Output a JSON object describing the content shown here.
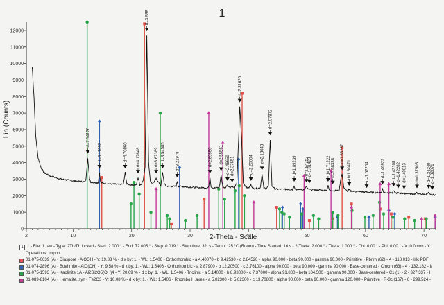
{
  "chart_data": {
    "type": "line",
    "title": "1",
    "xlabel": "2-Theta - Scale",
    "ylabel": "Lin (Counts)",
    "xlim": [
      2,
      72
    ],
    "ylim": [
      0,
      12500
    ],
    "xticks": [
      2,
      10,
      20,
      30,
      40,
      50,
      60,
      70
    ],
    "yticks": [
      0,
      1000,
      2000,
      3000,
      4000,
      5000,
      6000,
      7000,
      8000,
      9000,
      10000,
      11000,
      12000
    ],
    "grid": false,
    "pattern": {
      "name": "1",
      "points": [
        [
          3.0,
          9800
        ],
        [
          3.3,
          8000
        ],
        [
          3.6,
          5600
        ],
        [
          4.0,
          4300
        ],
        [
          4.5,
          3700
        ],
        [
          5.0,
          3400
        ],
        [
          6.0,
          3200
        ],
        [
          7.0,
          3100
        ],
        [
          8.0,
          3000
        ],
        [
          9.0,
          2950
        ],
        [
          10.0,
          2900
        ],
        [
          11.0,
          2870
        ],
        [
          12.0,
          2840
        ],
        [
          12.2,
          3000
        ],
        [
          12.4,
          3900
        ],
        [
          12.5,
          4300
        ],
        [
          12.6,
          3900
        ],
        [
          12.8,
          3000
        ],
        [
          13.0,
          2820
        ],
        [
          14.0,
          2780
        ],
        [
          14.3,
          2800
        ],
        [
          14.5,
          3400
        ],
        [
          14.7,
          2800
        ],
        [
          15.0,
          2760
        ],
        [
          16.0,
          2730
        ],
        [
          17.0,
          2700
        ],
        [
          18.0,
          2680
        ],
        [
          18.6,
          2700
        ],
        [
          18.9,
          3400
        ],
        [
          19.2,
          2700
        ],
        [
          20.0,
          2650
        ],
        [
          20.8,
          2660
        ],
        [
          21.1,
          3100
        ],
        [
          21.4,
          2660
        ],
        [
          21.7,
          2700
        ],
        [
          22.0,
          3000
        ],
        [
          22.3,
          3700
        ],
        [
          22.6,
          11700
        ],
        [
          22.9,
          4000
        ],
        [
          23.2,
          2900
        ],
        [
          23.6,
          2700
        ],
        [
          24.0,
          2900
        ],
        [
          24.2,
          3100
        ],
        [
          24.4,
          2900
        ],
        [
          25.0,
          2620
        ],
        [
          25.3,
          3400
        ],
        [
          25.6,
          2700
        ],
        [
          26.0,
          2580
        ],
        [
          27.0,
          2560
        ],
        [
          27.6,
          2570
        ],
        [
          27.8,
          2850
        ],
        [
          28.0,
          2570
        ],
        [
          29.0,
          2540
        ],
        [
          30.0,
          2520
        ],
        [
          31.0,
          2500
        ],
        [
          32.0,
          2480
        ],
        [
          33.0,
          2470
        ],
        [
          33.2,
          2550
        ],
        [
          33.4,
          3100
        ],
        [
          33.6,
          2550
        ],
        [
          34.0,
          2460
        ],
        [
          35.0,
          2500
        ],
        [
          35.3,
          3250
        ],
        [
          35.6,
          2500
        ],
        [
          36.0,
          2480
        ],
        [
          36.4,
          2650
        ],
        [
          36.8,
          2500
        ],
        [
          37.2,
          2560
        ],
        [
          37.6,
          2450
        ],
        [
          38.0,
          2800
        ],
        [
          38.3,
          5400
        ],
        [
          38.5,
          7400
        ],
        [
          38.8,
          5500
        ],
        [
          39.1,
          2800
        ],
        [
          39.6,
          2500
        ],
        [
          40.0,
          2460
        ],
        [
          40.4,
          2650
        ],
        [
          40.8,
          2440
        ],
        [
          41.5,
          2430
        ],
        [
          42.0,
          2480
        ],
        [
          42.3,
          3300
        ],
        [
          42.6,
          2480
        ],
        [
          43.0,
          2420
        ],
        [
          43.4,
          2600
        ],
        [
          43.7,
          5400
        ],
        [
          44.0,
          2600
        ],
        [
          44.5,
          2410
        ],
        [
          45.0,
          2400
        ],
        [
          46.0,
          2390
        ],
        [
          47.0,
          2380
        ],
        [
          47.5,
          2370
        ],
        [
          47.8,
          2600
        ],
        [
          48.0,
          2380
        ],
        [
          49.0,
          2370
        ],
        [
          49.6,
          2380
        ],
        [
          49.9,
          2550
        ],
        [
          50.2,
          2380
        ],
        [
          51.0,
          2360
        ],
        [
          52.0,
          2340
        ],
        [
          53.0,
          2320
        ],
        [
          53.4,
          2350
        ],
        [
          53.6,
          2600
        ],
        [
          53.8,
          2350
        ],
        [
          54.5,
          2300
        ],
        [
          55.0,
          2300
        ],
        [
          55.5,
          2330
        ],
        [
          55.8,
          3100
        ],
        [
          56.0,
          3300
        ],
        [
          56.3,
          2500
        ],
        [
          56.8,
          2280
        ],
        [
          57.2,
          2350
        ],
        [
          57.5,
          2280
        ],
        [
          58.0,
          2260
        ],
        [
          59.0,
          2240
        ],
        [
          59.6,
          2230
        ],
        [
          60.0,
          2220
        ],
        [
          61.0,
          2200
        ],
        [
          62.0,
          2190
        ],
        [
          62.7,
          2200
        ],
        [
          62.9,
          2430
        ],
        [
          63.1,
          2200
        ],
        [
          64.0,
          2170
        ],
        [
          64.6,
          2170
        ],
        [
          64.8,
          2300
        ],
        [
          65.0,
          2170
        ],
        [
          66.0,
          2150
        ],
        [
          67.0,
          2130
        ],
        [
          68.0,
          2110
        ],
        [
          68.5,
          2100
        ],
        [
          68.8,
          2200
        ],
        [
          69.0,
          2100
        ],
        [
          70.0,
          2080
        ],
        [
          70.5,
          2080
        ],
        [
          70.8,
          2180
        ],
        [
          71.0,
          2070
        ],
        [
          71.5,
          2060
        ],
        [
          72.0,
          2050
        ]
      ]
    },
    "peak_labels": [
      {
        "x": 12.5,
        "y": 4300,
        "label": "d=7.14126"
      },
      {
        "x": 14.5,
        "y": 3400,
        "label": "d=6.11092"
      },
      {
        "x": 18.9,
        "y": 3400,
        "label": "d=4.70860"
      },
      {
        "x": 21.1,
        "y": 3100,
        "label": "d=4.17648"
      },
      {
        "x": 22.6,
        "y": 11700,
        "label": "d=3.988"
      },
      {
        "x": 24.2,
        "y": 3100,
        "label": "d=3.67389"
      },
      {
        "x": 25.3,
        "y": 3400,
        "label": "d=3.54585"
      },
      {
        "x": 27.8,
        "y": 2850,
        "label": "d=3.21978"
      },
      {
        "x": 33.4,
        "y": 3100,
        "label": "d=2.69550"
      },
      {
        "x": 35.3,
        "y": 3250,
        "label": "d=2.55561"
      },
      {
        "x": 36.4,
        "y": 2650,
        "label": "d=2.46659"
      },
      {
        "x": 37.2,
        "y": 2560,
        "label": "d=2.37651"
      },
      {
        "x": 38.5,
        "y": 7400,
        "label": "d=2.31626"
      },
      {
        "x": 40.4,
        "y": 2650,
        "label": "d=2.20004"
      },
      {
        "x": 42.3,
        "y": 3300,
        "label": "d=2.13043"
      },
      {
        "x": 43.7,
        "y": 5400,
        "label": "d=2.07872"
      },
      {
        "x": 47.8,
        "y": 2600,
        "label": "d=1.89239"
      },
      {
        "x": 49.9,
        "y": 2550,
        "label": "d=1.84352"
      },
      {
        "x": 50.4,
        "y": 2500,
        "label": "d=1.81428"
      },
      {
        "x": 53.6,
        "y": 2600,
        "label": "d=1.71222"
      },
      {
        "x": 54.4,
        "y": 2450,
        "label": "d=1.68338"
      },
      {
        "x": 56.0,
        "y": 3300,
        "label": "d=1.63257"
      },
      {
        "x": 57.2,
        "y": 2350,
        "label": "d=1.60471"
      },
      {
        "x": 60.2,
        "y": 2220,
        "label": "d=1.52204"
      },
      {
        "x": 62.9,
        "y": 2430,
        "label": "d=1.46922"
      },
      {
        "x": 64.8,
        "y": 2300,
        "label": "d=1.43108"
      },
      {
        "x": 65.6,
        "y": 2200,
        "label": "d=1.42282"
      },
      {
        "x": 66.6,
        "y": 2150,
        "label": "d=1.40013"
      },
      {
        "x": 68.8,
        "y": 2200,
        "label": "d=1.37505"
      },
      {
        "x": 70.8,
        "y": 2180,
        "label": "d=1.34249"
      },
      {
        "x": 71.4,
        "y": 2100,
        "label": "d=1.32071"
      }
    ],
    "reference_sticks": [
      {
        "phase": "Diaspore",
        "color": "#e0514a",
        "marker": "square",
        "sticks": [
          [
            22.2,
            12400
          ],
          [
            38.9,
            8200
          ],
          [
            56.0,
            4900
          ],
          [
            14.9,
            3100
          ],
          [
            32.4,
            1800
          ],
          [
            44.8,
            1300
          ],
          [
            57.6,
            1500
          ],
          [
            62.5,
            1200
          ],
          [
            64.4,
            900
          ],
          [
            67.4,
            700
          ],
          [
            70.2,
            600
          ],
          [
            26.8,
            300
          ],
          [
            50.4,
            500
          ],
          [
            54.4,
            600
          ]
        ]
      },
      {
        "phase": "Boehmite",
        "color": "#2f62b5",
        "marker": "diamond",
        "sticks": [
          [
            14.5,
            6500
          ],
          [
            28.2,
            3700
          ],
          [
            38.3,
            4200
          ],
          [
            45.8,
            1300
          ],
          [
            48.9,
            1500
          ],
          [
            49.3,
            1200
          ],
          [
            55.2,
            700
          ],
          [
            60.6,
            700
          ],
          [
            64.0,
            1100
          ],
          [
            65.0,
            900
          ],
          [
            71.9,
            700
          ]
        ]
      },
      {
        "phase": "Kaolinite 1A",
        "color": "#29a64a",
        "marker": "circle",
        "sticks": [
          [
            12.4,
            12500
          ],
          [
            24.9,
            7000
          ],
          [
            20.4,
            2800
          ],
          [
            21.3,
            2100
          ],
          [
            19.9,
            1500
          ],
          [
            23.3,
            1000
          ],
          [
            26.1,
            800
          ],
          [
            26.5,
            600
          ],
          [
            34.9,
            2400
          ],
          [
            35.9,
            1800
          ],
          [
            37.7,
            2300
          ],
          [
            38.4,
            2600
          ],
          [
            39.3,
            2000
          ],
          [
            45.3,
            1200
          ],
          [
            45.7,
            1000
          ],
          [
            46.1,
            900
          ],
          [
            47.0,
            700
          ],
          [
            49.1,
            900
          ],
          [
            51.1,
            800
          ],
          [
            52.0,
            600
          ],
          [
            54.4,
            1000
          ],
          [
            55.3,
            800
          ],
          [
            57.7,
            1100
          ],
          [
            59.9,
            700
          ],
          [
            61.3,
            800
          ],
          [
            62.4,
            1600
          ],
          [
            63.1,
            900
          ],
          [
            64.7,
            700
          ],
          [
            66.7,
            600
          ],
          [
            68.4,
            500
          ],
          [
            70.4,
            600
          ],
          [
            31.2,
            800
          ],
          [
            29.2,
            500
          ]
        ]
      },
      {
        "phase": "Hematite, syn",
        "color": "#c2399a",
        "marker": "triangle",
        "sticks": [
          [
            24.2,
            2400
          ],
          [
            33.2,
            7000
          ],
          [
            35.6,
            5200
          ],
          [
            40.9,
            1600
          ],
          [
            49.5,
            3200
          ],
          [
            54.1,
            3500
          ],
          [
            57.6,
            1300
          ],
          [
            62.5,
            2700
          ],
          [
            64.0,
            2700
          ],
          [
            69.6,
            600
          ],
          [
            71.9,
            800
          ]
        ]
      }
    ]
  },
  "legend": {
    "lines": [
      {
        "marker": "1",
        "color": "#ffffff",
        "text": "1 - File: 1.raw - Type: 2Th/Th locked - Start: 2.000 ° - End: 72.005 ° - Step: 0.019 ° - Step time: 32. s - Temp.: 25 °C (Room) - Time Started: 16 s - 2-Theta: 2.000 ° - Theta: 1.000 ° - Chi: 0.00 ° - Phi: 0.00 ° - X: 0.0 mm - Y:"
      },
      {
        "marker": "",
        "color": "",
        "text": "Operations: Import"
      },
      {
        "marker": "",
        "color": "#e0514a",
        "text": "01-075-0639 (A) - Diaspore - AlOOH - Y: 19.83 % - d x by: 1. - WL: 1.5406 - Orthorhombic - a 4.40070 - b 9.42530 - c 2.84520 - alpha 90.000 - beta 90.000 - gamma 90.000 - Primitive - Pbnm (62) - 4 - 118.013 - I/Ic PDF"
      },
      {
        "marker": "",
        "color": "#2f62b5",
        "text": "01-074-2896 (A) - Boehmite - AlO(OH) - Y: 9.58 % - d x by: 1. - WL: 1.5406 - Orthorhombic - a 2.87900 - b 12.20500 - c 3.76100 - alpha 90.000 - beta 90.000 - gamma 90.000 - Base-centered - Cmcm (63) - 4 - 132.182 - I/"
      },
      {
        "marker": "",
        "color": "#29a64a",
        "text": "01-075-1593 (A) - Kaolinite 1A - Al2Si2O5(OH)4 - Y: 20.69 % - d x by: 1. - WL: 1.5406 - Triclinic - a 5.14000 - b 8.93000 - c 7.37000 - alpha 91.800 - beta 104.500 - gamma 90.000 - Base-centered - C1 (1) - 2 - 327.337 - I"
      },
      {
        "marker": "",
        "color": "#c2399a",
        "text": "01-089-8104 (A) - Hematite, syn - Fe2O3 - Y: 10.08 % - d x by: 1. - WL: 1.5406 - Rhombo.H.axes - a 5.02300 - b 5.02300 - c 13.70800 - alpha 90.000 - beta 90.000 - gamma 120.000 - Primitive - R-3c (167) - 6 - 299.524 -"
      }
    ]
  }
}
